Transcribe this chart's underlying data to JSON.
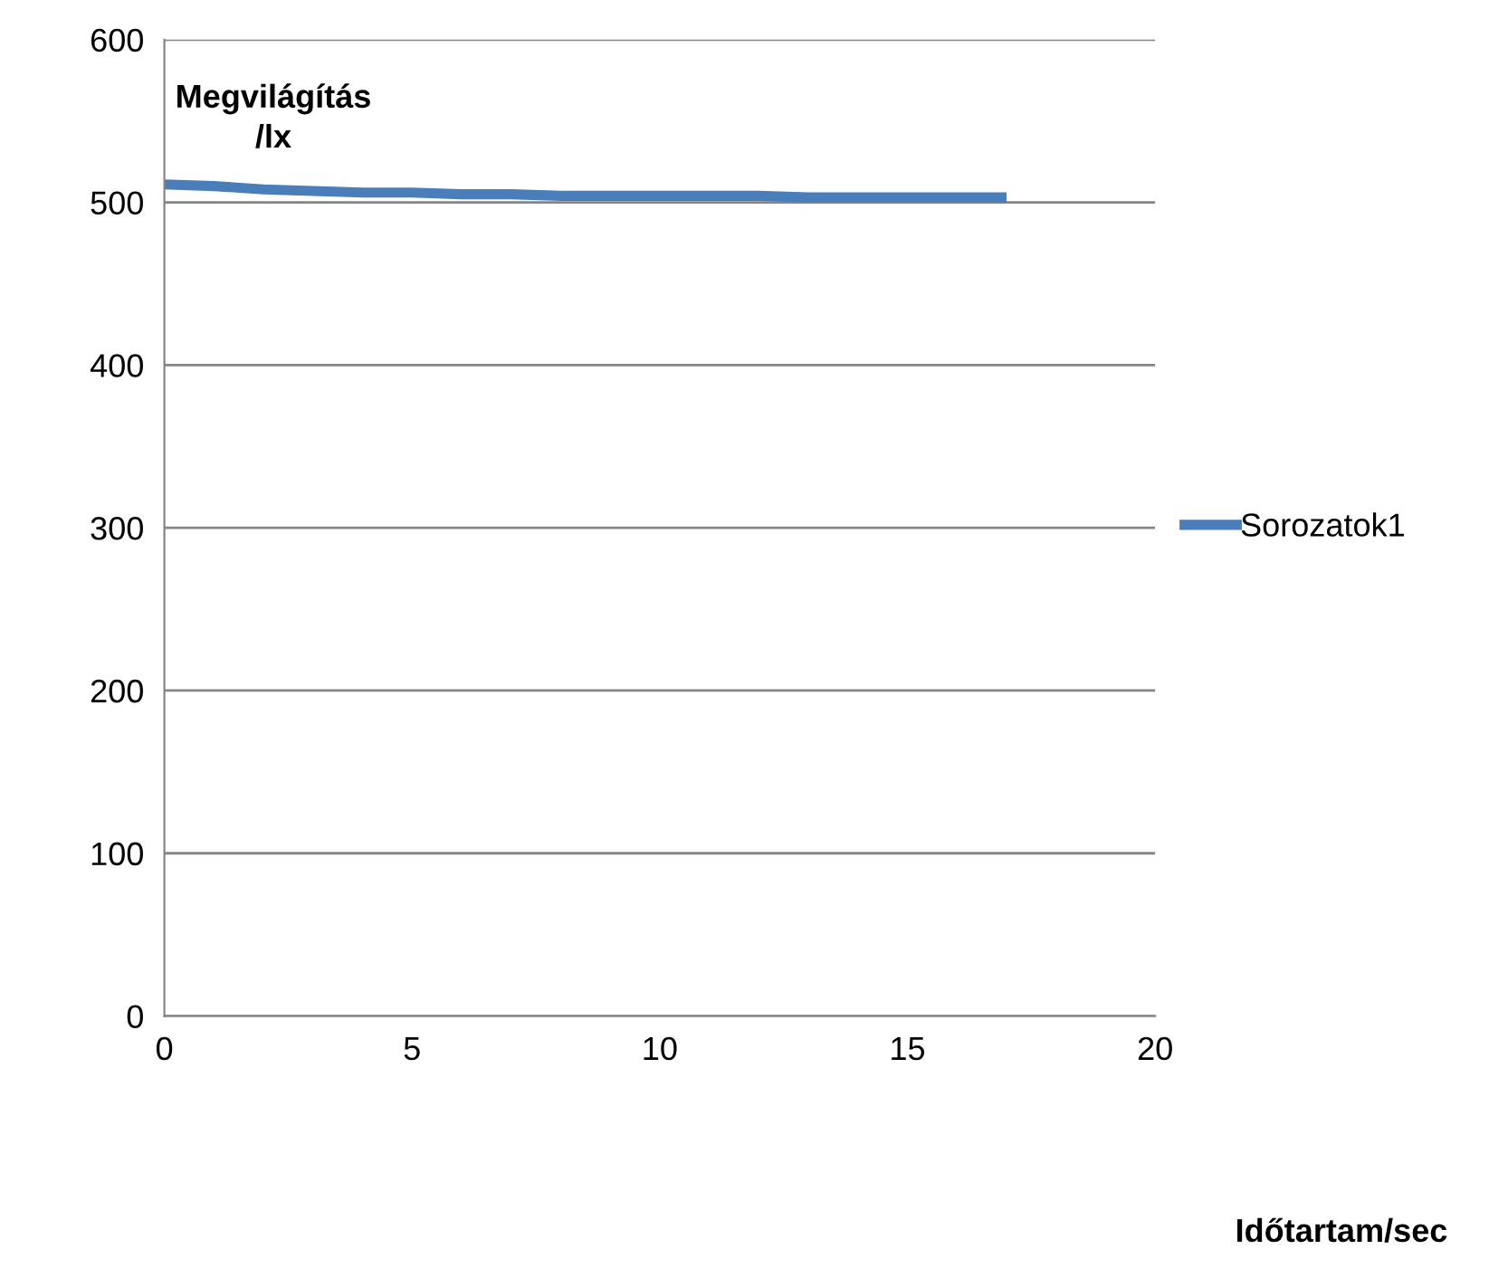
{
  "chart_data": {
    "type": "line",
    "annotations": [
      "Időtartam/sec"
    ],
    "ylabel": "Megvilágítás\n/lx",
    "series": [
      {
        "name": "Sorozatok1",
        "color": "#4a7ebb",
        "x": [
          0,
          1,
          2,
          3,
          4,
          5,
          6,
          7,
          8,
          9,
          10,
          11,
          12,
          13,
          14,
          15,
          16,
          17
        ],
        "values": [
          511,
          510,
          508,
          507,
          506,
          506,
          505,
          505,
          504,
          504,
          504,
          504,
          504,
          503,
          503,
          503,
          503,
          503
        ]
      }
    ],
    "xlim": [
      0,
      20
    ],
    "ylim": [
      0,
      600
    ],
    "xticks": [
      0,
      5,
      10,
      15,
      20
    ],
    "yticks": [
      0,
      100,
      200,
      300,
      400,
      500,
      600
    ],
    "grid": "y",
    "legend": "right",
    "marker": "none",
    "line_style": "solid"
  }
}
